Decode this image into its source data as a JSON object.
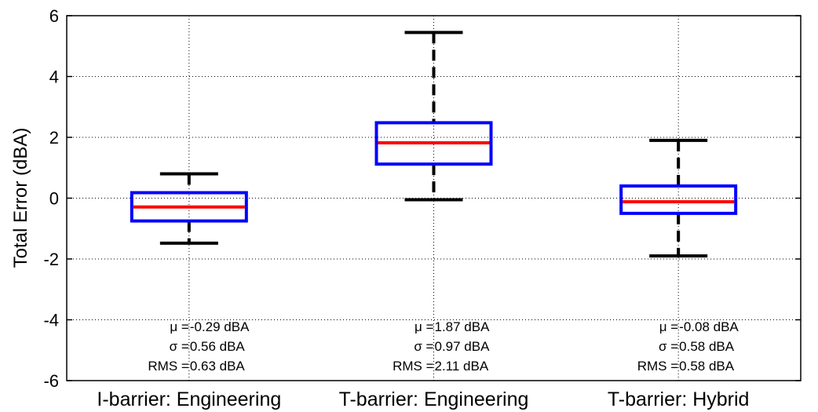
{
  "chart_data": {
    "type": "box",
    "ylabel": "Total Error (dBA)",
    "ylim": [
      -6,
      6
    ],
    "yticks": [
      -6,
      -4,
      -2,
      0,
      2,
      4,
      6
    ],
    "grid": true,
    "categories": [
      "I-barrier: Engineering",
      "T-barrier: Engineering",
      "T-barrier: Hybrid"
    ],
    "boxes": [
      {
        "category": "I-barrier: Engineering",
        "whisker_low": -1.48,
        "q1": -0.75,
        "median": -0.29,
        "q3": 0.18,
        "whisker_high": 0.8,
        "stats": [
          "μ = -0.29 dBA",
          "σ = 0.56 dBA",
          "RMS = 0.63 dBA"
        ]
      },
      {
        "category": "T-barrier: Engineering",
        "whisker_low": -0.05,
        "q1": 1.12,
        "median": 1.82,
        "q3": 2.48,
        "whisker_high": 5.45,
        "stats": [
          "μ = 1.87 dBA",
          "σ = 0.97 dBA",
          "RMS = 2.11 dBA"
        ]
      },
      {
        "category": "T-barrier: Hybrid",
        "whisker_low": -1.9,
        "q1": -0.5,
        "median": -0.12,
        "q3": 0.4,
        "whisker_high": 1.9,
        "stats": [
          "μ = -0.08 dBA",
          "σ = 0.58 dBA",
          "RMS = 0.58 dBA"
        ]
      }
    ],
    "colors": {
      "box": "#0000ff",
      "median": "#ff0000",
      "whisker": "#000000"
    }
  }
}
